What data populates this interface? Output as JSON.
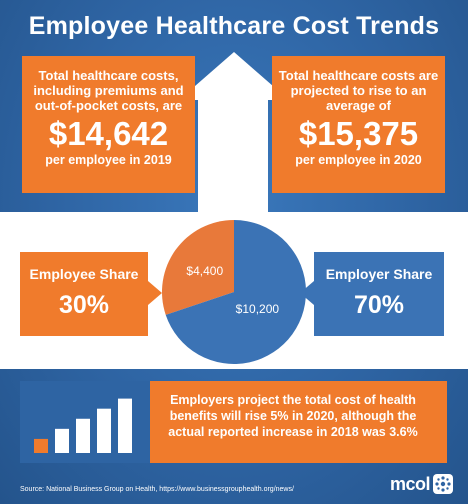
{
  "title": "Employee Healthcare Cost Trends",
  "left_box": {
    "text": "Total healthcare costs, including premiums and out-of-pocket costs, are",
    "amount": "$14,642",
    "sub": "per employee in 2019"
  },
  "right_box": {
    "text": "Total healthcare costs are projected to rise to an average of",
    "amount": "$15,375",
    "sub": "per employee in 2020"
  },
  "chart_data": {
    "type": "pie",
    "title": "",
    "slices": [
      {
        "name": "Employee Share",
        "value": 4400,
        "label": "$4,400",
        "percent": "30%",
        "color": "#e8793a"
      },
      {
        "name": "Employer Share",
        "value": 10200,
        "label": "$10,200",
        "percent": "70%",
        "color": "#3b73b5"
      }
    ]
  },
  "bottom": {
    "text": "Employers project the total cost of health benefits will rise 5% in 2020, although the actual reported increase in 2018 was 3.6%",
    "bar_icon": {
      "values": [
        1,
        2,
        3,
        4,
        5
      ],
      "colors": [
        "#f07b2c",
        "#ffffff",
        "#ffffff",
        "#ffffff",
        "#2e64a3"
      ]
    }
  },
  "source": "Source: National Business Group on Health, https://www.businessgrouphealth.org/news/",
  "logo": {
    "text": "mcol"
  }
}
